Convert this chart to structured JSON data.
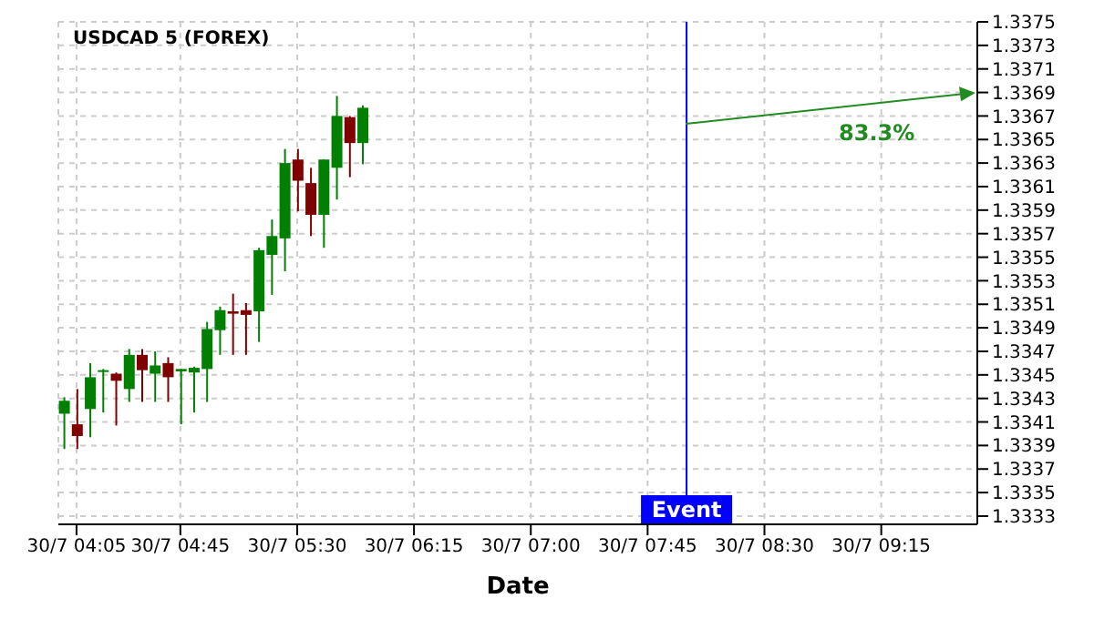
{
  "chart_data": {
    "type": "candlestick",
    "title": "USDCAD 5 (FOREX)",
    "xlabel": "Date",
    "x": [
      "--07-30T04:00",
      "--07-30T04:05",
      "--07-30T04:10",
      "--07-30T04:15",
      "--07-30T04:20",
      "--07-30T04:25",
      "--07-30T04:30",
      "--07-30T04:35",
      "--07-30T04:40",
      "--07-30T04:45",
      "--07-30T04:50",
      "--07-30T04:55",
      "--07-30T05:00",
      "--07-30T05:05",
      "--07-30T05:10",
      "--07-30T05:15",
      "--07-30T05:20",
      "--07-30T05:25",
      "--07-30T05:30",
      "--07-30T05:35",
      "--07-30T05:40",
      "--07-30T05:45",
      "--07-30T05:50",
      "--07-30T05:55"
    ],
    "ohlc": [
      [
        1.33417,
        1.33431,
        1.33387,
        1.33428
      ],
      [
        1.33408,
        1.33438,
        1.33387,
        1.33398
      ],
      [
        1.33421,
        1.3346,
        1.33397,
        1.33448
      ],
      [
        1.33453,
        1.33455,
        1.33418,
        1.33454
      ],
      [
        1.33451,
        1.33452,
        1.33407,
        1.33445
      ],
      [
        1.33438,
        1.33472,
        1.33427,
        1.33467
      ],
      [
        1.33467,
        1.33472,
        1.33427,
        1.33454
      ],
      [
        1.33451,
        1.3347,
        1.33427,
        1.33458
      ],
      [
        1.3346,
        1.33465,
        1.33427,
        1.33448
      ],
      [
        1.33453,
        1.33455,
        1.33408,
        1.33455
      ],
      [
        1.33452,
        1.33457,
        1.33418,
        1.33456
      ],
      [
        1.33455,
        1.33495,
        1.33427,
        1.33489
      ],
      [
        1.33488,
        1.33508,
        1.33467,
        1.33505
      ],
      [
        1.33504,
        1.33519,
        1.33467,
        1.33502
      ],
      [
        1.33505,
        1.33511,
        1.33467,
        1.33501
      ],
      [
        1.33504,
        1.33558,
        1.33478,
        1.33556
      ],
      [
        1.33552,
        1.33582,
        1.33518,
        1.33568
      ],
      [
        1.33566,
        1.33642,
        1.33538,
        1.3363
      ],
      [
        1.33633,
        1.33642,
        1.33589,
        1.33615
      ],
      [
        1.33613,
        1.33626,
        1.33568,
        1.33586
      ],
      [
        1.33586,
        1.33633,
        1.33558,
        1.33633
      ],
      [
        1.33626,
        1.33687,
        1.33599,
        1.3367
      ],
      [
        1.33669,
        1.3367,
        1.33618,
        1.33647
      ],
      [
        1.33647,
        1.33679,
        1.33629,
        1.33677
      ]
    ],
    "colors": [
      "#008000",
      "#800000",
      "#008000",
      "#008000",
      "#800000",
      "#008000",
      "#800000",
      "#008000",
      "#800000",
      "#008000",
      "#008000",
      "#008000",
      "#008000",
      "#800000",
      "#800000",
      "#008000",
      "#008000",
      "#008000",
      "#800000",
      "#800000",
      "#008000",
      "#008000",
      "#800000",
      "#008000"
    ],
    "annotations": [
      "83.3%"
    ],
    "ref_lines": [
      {
        "axis": "x",
        "value": "--07-30T08:00",
        "label": "Event",
        "color": "#0000ff"
      }
    ],
    "xlim": [
      "--07-30T03:58",
      "--07-30T09:52"
    ],
    "xticks": [
      {
        "value": "--07-30T04:05",
        "label": "30/7 04:05"
      },
      {
        "value": "--07-30T04:45",
        "label": "30/7 04:45"
      },
      {
        "value": "--07-30T05:30",
        "label": "30/7 05:30"
      },
      {
        "value": "--07-30T06:15",
        "label": "30/7 06:15"
      },
      {
        "value": "--07-30T07:00",
        "label": "30/7 07:00"
      },
      {
        "value": "--07-30T07:45",
        "label": "30/7 07:45"
      },
      {
        "value": "--07-30T08:30",
        "label": "30/7 08:30"
      },
      {
        "value": "--07-30T09:15",
        "label": "30/7 09:15"
      }
    ],
    "ylim": [
      1.33323,
      1.3375
    ],
    "yticks": [
      1.3333,
      1.3335,
      1.3337,
      1.3339,
      1.3341,
      1.3343,
      1.3345,
      1.3347,
      1.3349,
      1.3351,
      1.3353,
      1.3355,
      1.3357,
      1.3359,
      1.3361,
      1.3363,
      1.3365,
      1.3367,
      1.3369,
      1.3371,
      1.3373,
      1.3375
    ],
    "grid": true
  }
}
